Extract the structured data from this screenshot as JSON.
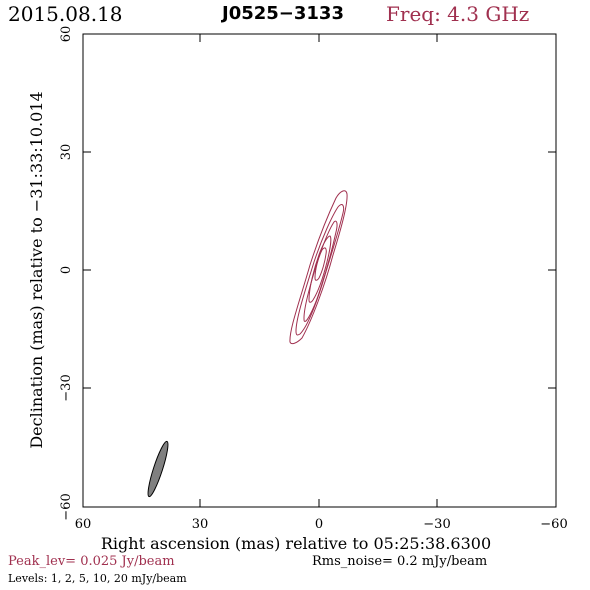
{
  "header": {
    "date": "2015.08.18",
    "source": "J0525−3133",
    "freq": "Freq: 4.3 GHz"
  },
  "axes": {
    "xlabel": "Right ascension (mas) relative to 05:25:38.6300",
    "ylabel": "Declination (mas) relative to −31:33:10.014",
    "xticks": [
      "60",
      "30",
      "0",
      "−30",
      "−60"
    ],
    "yticks": [
      "60",
      "30",
      "0",
      "−30",
      "−60"
    ]
  },
  "footer": {
    "peak": "Peak_lev=  0.025 Jy/beam",
    "rms": "Rms_noise=  0.2 mJy/beam",
    "levels": "Levels:   1,   2,   5,   10,   20 mJy/beam"
  },
  "colors": {
    "contour": "#a0304f",
    "beam": "#808080",
    "accent": "#a0304f"
  }
}
